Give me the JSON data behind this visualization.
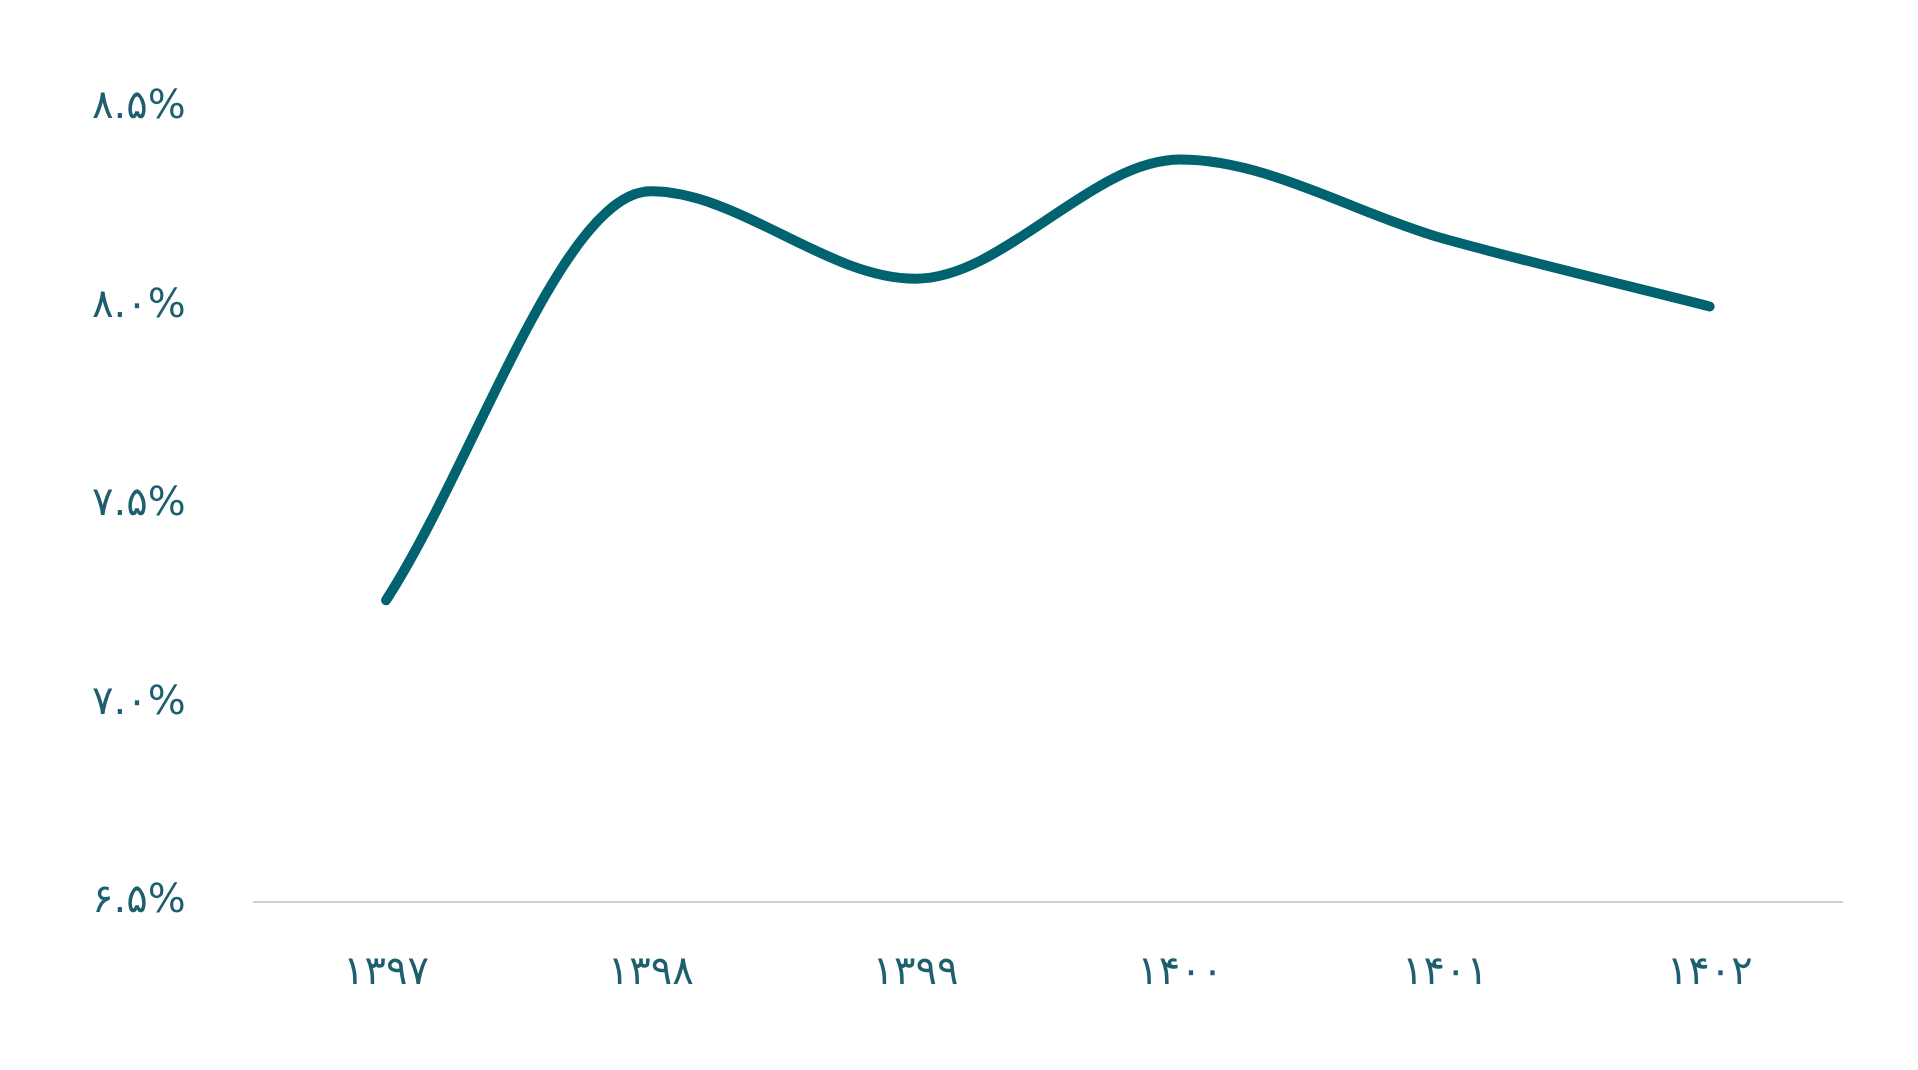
{
  "chart_data": {
    "type": "line",
    "categories": [
      "۱۳۹۷",
      "۱۳۹۸",
      "۱۳۹۹",
      "۱۴۰۰",
      "۱۴۰۱",
      "۱۴۰۲"
    ],
    "series": [
      {
        "color": "#00636f",
        "values": [
          7.26,
          8.29,
          8.07,
          8.37,
          8.17,
          8.0
        ]
      }
    ],
    "ylim": [
      6.5,
      8.5
    ],
    "yticks": [
      {
        "value": 6.5,
        "label": "۶.۵%"
      },
      {
        "value": 7,
        "label": "۷.۰%"
      },
      {
        "value": 7.5,
        "label": "۷.۵%"
      },
      {
        "value": 8,
        "label": "۸.۰%"
      },
      {
        "value": 8.5,
        "label": "۸.۵%"
      }
    ],
    "grid": false,
    "legend": false,
    "marker": "none",
    "line_style": "solid"
  }
}
